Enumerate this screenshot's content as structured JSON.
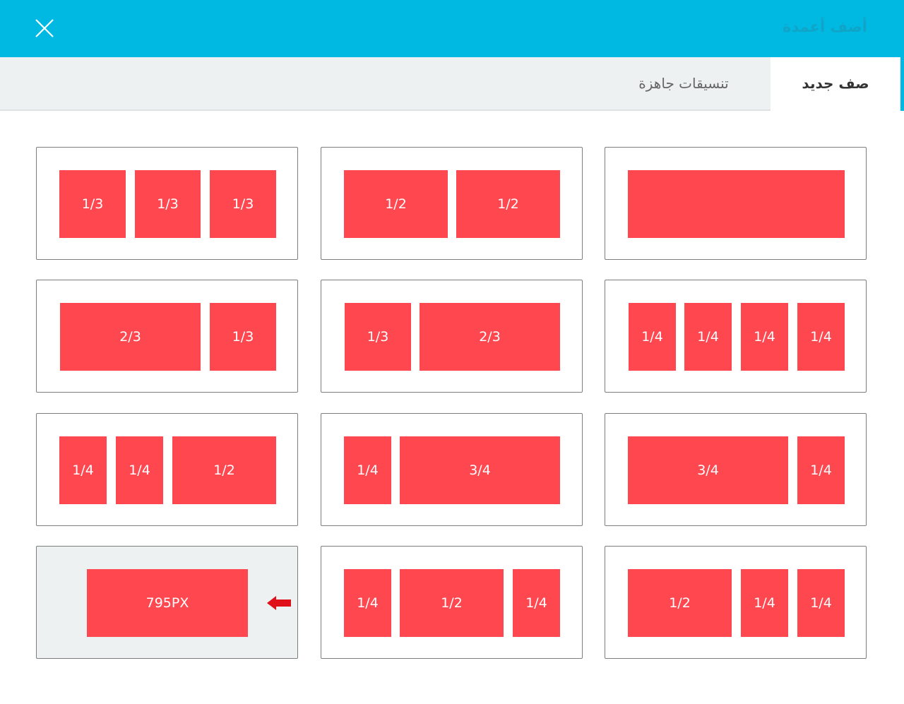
{
  "header": {
    "title": "أضف أعمدة",
    "close_icon": "close-icon"
  },
  "tabs": [
    {
      "label": "صف جديد",
      "active": true
    },
    {
      "label": "تنسيقات جاهزة",
      "active": false
    }
  ],
  "colors": {
    "header_bg": "#00b9e3",
    "block": "#ff4750",
    "selected_card_bg": "#edf1f1"
  },
  "layouts": [
    {
      "blocks": [
        ""
      ]
    },
    {
      "blocks": [
        "1/2",
        "1/2"
      ]
    },
    {
      "blocks": [
        "1/3",
        "1/3",
        "1/3"
      ]
    },
    {
      "blocks": [
        "1/4",
        "1/4",
        "1/4",
        "1/4"
      ]
    },
    {
      "blocks": [
        "1/3",
        "2/3"
      ]
    },
    {
      "blocks": [
        "2/3",
        "1/3"
      ]
    },
    {
      "blocks": [
        "3/4",
        "1/4"
      ]
    },
    {
      "blocks": [
        "1/4",
        "3/4"
      ]
    },
    {
      "blocks": [
        "1/4",
        "1/4",
        "1/2"
      ]
    },
    {
      "blocks": [
        "1/2",
        "1/4",
        "1/4"
      ]
    },
    {
      "blocks": [
        "1/4",
        "1/2",
        "1/4"
      ]
    },
    {
      "blocks": [
        "795PX"
      ],
      "selected": true,
      "icon": "arrow-left-icon"
    }
  ]
}
